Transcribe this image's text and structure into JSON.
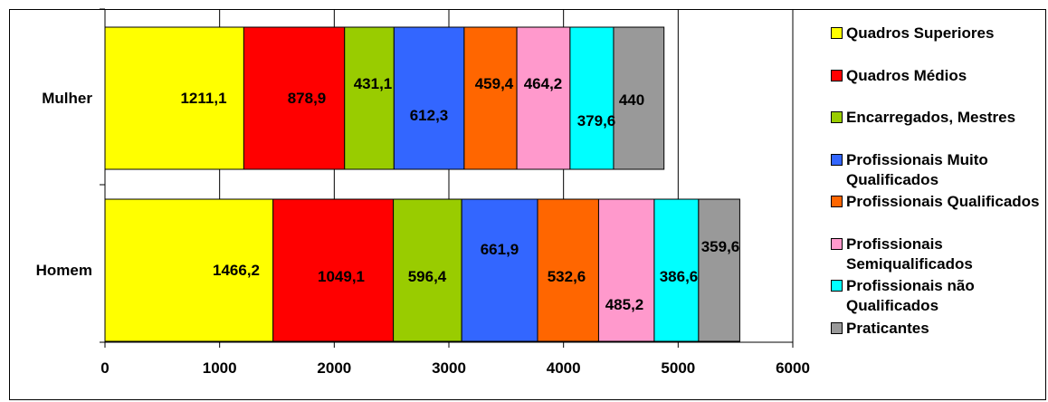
{
  "chart_data": {
    "type": "bar",
    "orientation": "horizontal",
    "stacked": true,
    "categories": [
      "Mulher",
      "Homem"
    ],
    "series": [
      {
        "name": "Quadros Superiores",
        "color": "#ffff00",
        "values": [
          1211.1,
          1466.2
        ],
        "labels": [
          "1211,1",
          "1466,2"
        ]
      },
      {
        "name": "Quadros Médios",
        "color": "#ff0000",
        "values": [
          878.9,
          1049.1
        ],
        "labels": [
          "878,9",
          "1049,1"
        ]
      },
      {
        "name": "Encarregados, Mestres",
        "color": "#99cc00",
        "values": [
          431.1,
          596.4
        ],
        "labels": [
          "431,1",
          "596,4"
        ]
      },
      {
        "name": "Profissionais Muito Qualificados",
        "color": "#3366ff",
        "values": [
          612.3,
          661.9
        ],
        "labels": [
          "612,3",
          "661,9"
        ]
      },
      {
        "name": "Profissionais Qualificados",
        "color": "#ff6600",
        "values": [
          459.4,
          532.6
        ],
        "labels": [
          "459,4",
          "532,6"
        ]
      },
      {
        "name": "Profissionais Semiqualificados",
        "color": "#ff99cc",
        "values": [
          464.2,
          485.2
        ],
        "labels": [
          "464,2",
          "485,2"
        ]
      },
      {
        "name": "Profissionais não Qualificados",
        "color": "#00ffff",
        "values": [
          379.6,
          386.6
        ],
        "labels": [
          "379,6",
          "386,6"
        ]
      },
      {
        "name": "Praticantes",
        "color": "#999999",
        "values": [
          440,
          359.6
        ],
        "labels": [
          "440",
          "359,6"
        ]
      }
    ],
    "xlim": [
      0,
      6000
    ],
    "xticks": [
      0,
      1000,
      2000,
      3000,
      4000,
      5000,
      6000
    ],
    "xtick_labels": [
      "0",
      "1000",
      "2000",
      "3000",
      "4000",
      "5000",
      "6000"
    ],
    "grid": true,
    "legend_position": "right"
  }
}
